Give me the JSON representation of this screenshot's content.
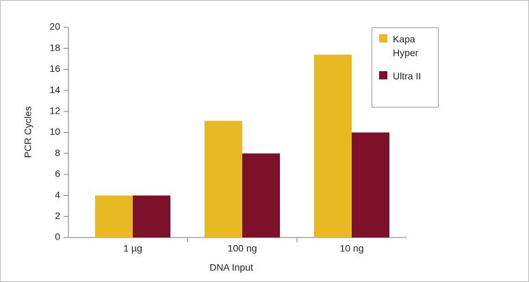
{
  "chart_data": {
    "type": "bar",
    "x_label": "DNA Input",
    "y_label": "PCR Cycles",
    "categories": [
      "1 µg",
      "100 ng",
      "10 ng"
    ],
    "series": [
      {
        "name": "Kapa Hyper",
        "color": "#e8b923",
        "values": [
          4,
          11.1,
          17.4
        ]
      },
      {
        "name": "Ultra II",
        "color": "#7d1129",
        "values": [
          4,
          8,
          10
        ]
      }
    ],
    "ylim": [
      0,
      20
    ],
    "yticks": [
      0,
      2,
      4,
      6,
      8,
      10,
      12,
      14,
      16,
      18,
      20
    ],
    "legend": "upper right"
  }
}
